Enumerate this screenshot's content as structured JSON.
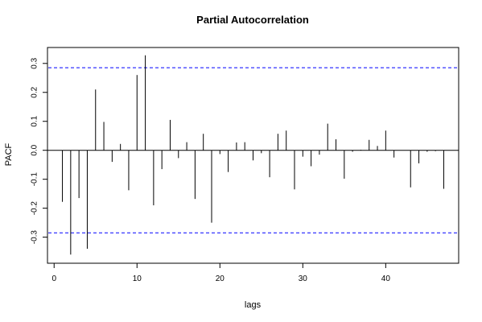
{
  "chart_data": {
    "type": "bar",
    "title": "Partial Autocorrelation",
    "xlabel": "lags",
    "ylabel": "PACF",
    "xlim": [
      -0.8,
      48.8
    ],
    "ylim": [
      -0.39,
      0.355
    ],
    "x_ticks": [
      0,
      10,
      20,
      30,
      40
    ],
    "x_tick_labels": [
      "0",
      "10",
      "20",
      "30",
      "40"
    ],
    "y_ticks": [
      -0.3,
      -0.2,
      -0.1,
      0.0,
      0.1,
      0.2,
      0.3
    ],
    "y_tick_labels": [
      "-0.3",
      "-0.2",
      "-0.1",
      "0.0",
      "0.1",
      "0.2",
      "0.3"
    ],
    "confidence_bounds": [
      0.285,
      -0.285
    ],
    "colors": {
      "bars": "#000000",
      "bounds": "#0000ff",
      "zero_line": "#000000",
      "frame": "#000000"
    },
    "grid": false,
    "legend": false,
    "x": [
      1,
      2,
      3,
      4,
      5,
      6,
      7,
      8,
      9,
      10,
      11,
      12,
      13,
      14,
      15,
      16,
      17,
      18,
      19,
      20,
      21,
      22,
      23,
      24,
      25,
      26,
      27,
      28,
      29,
      30,
      31,
      32,
      33,
      34,
      35,
      36,
      37,
      38,
      39,
      40,
      41,
      42,
      43,
      44,
      45,
      46,
      47
    ],
    "values": [
      -0.178,
      -0.36,
      -0.165,
      -0.34,
      0.21,
      0.098,
      -0.04,
      0.022,
      -0.138,
      0.26,
      0.328,
      -0.19,
      -0.065,
      0.105,
      -0.027,
      0.028,
      -0.168,
      0.057,
      -0.25,
      -0.013,
      -0.075,
      0.027,
      0.028,
      -0.035,
      -0.01,
      -0.093,
      0.057,
      0.068,
      -0.135,
      -0.022,
      -0.055,
      -0.015,
      0.092,
      0.038,
      -0.098,
      -0.005,
      0.002,
      0.036,
      0.015,
      0.068,
      -0.025,
      0.0,
      -0.128,
      -0.045,
      -0.005,
      -0.003,
      -0.133
    ]
  }
}
